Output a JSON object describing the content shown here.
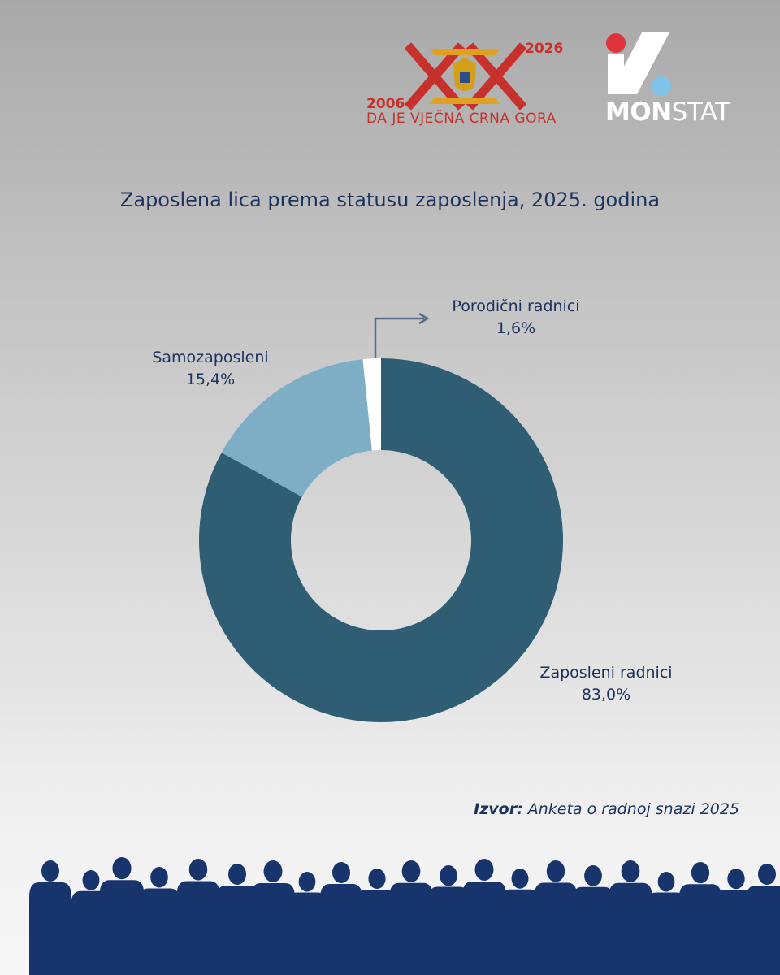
{
  "header": {
    "anniversary_logo": {
      "year_start": "2006",
      "year_end": "2026",
      "tagline": "DA JE VJEČNA CRNA GORA"
    },
    "agency_logo": {
      "name_bold": "MON",
      "name_light": "STAT"
    }
  },
  "chart_data": {
    "type": "pie",
    "style": "donut",
    "title": "Zaposlena lica prema statusu zaposlenja, 2025. godina",
    "unit": "%",
    "categories": [
      "Zaposleni radnici",
      "Samozaposleni",
      "Porodični radnici"
    ],
    "values": [
      83.0,
      15.4,
      1.6
    ],
    "value_labels": [
      "83,0%",
      "15,4%",
      "1,6%"
    ],
    "colors": [
      "#2f5d74",
      "#7eaec6",
      "#ffffff"
    ]
  },
  "footer": {
    "source_label": "Izvor:",
    "source_text": " Anketa o radnoj snazi 2025"
  },
  "colors": {
    "title_text": "#1c3360",
    "logo_red": "#c8302c",
    "logo_gold": "#e0a21e",
    "monstat_blue": "#7fc3ea",
    "crowd": "#17356c"
  }
}
